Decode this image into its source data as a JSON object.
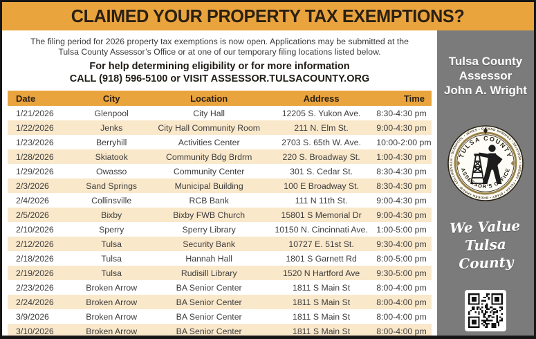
{
  "banner": {
    "title": "CLAIMED YOUR PROPERTY TAX EXEMPTIONS?"
  },
  "intro": {
    "line1": "The filing period for 2026 property tax exemptions is now open. Applications may be submitted at the",
    "line2": "Tulsa County Assessor’s Office or at one of our temporary filing locations listed below.",
    "help_line": "For help determining eligibility or for more information",
    "contact_line": "CALL (918) 596-5100 or VISIT ASSESSOR.TULSACOUNTY.ORG"
  },
  "table": {
    "headers": [
      "Date",
      "City",
      "Location",
      "Address",
      "Time"
    ],
    "rows": [
      [
        "1/21/2026",
        "Glenpool",
        "City Hall",
        "12205 S. Yukon Ave.",
        "8:30-4:30 pm"
      ],
      [
        "1/22/2026",
        "Jenks",
        "City Hall Community Room",
        "211 N. Elm St.",
        "9:00-4:30 pm"
      ],
      [
        "1/23/2026",
        "Berryhill",
        "Activities Center",
        "2703 S. 65th W. Ave.",
        "10:00-2:00 pm"
      ],
      [
        "1/28/2026",
        "Skiatook",
        "Community Bdg Brdrm",
        "220 S. Broadway St.",
        "1:00-4:30 pm"
      ],
      [
        "1/29/2026",
        "Owasso",
        "Community Center",
        "301 S. Cedar St.",
        "8:30-4:30 pm"
      ],
      [
        "2/3/2026",
        "Sand Springs",
        "Municipal Building",
        "100 E Broadway St.",
        "8:30-4:30 pm"
      ],
      [
        "2/4/2026",
        "Collinsville",
        "RCB Bank",
        "111 N 11th St.",
        "9:00-4:30 pm"
      ],
      [
        "2/5/2026",
        "Bixby",
        "Bixby FWB Church",
        "15801 S Memorial Dr",
        "9:00-4:30 pm"
      ],
      [
        "2/10/2026",
        "Sperry",
        "Sperry Library",
        "10150 N. Cincinnati Ave.",
        "1:00-5:00 pm"
      ],
      [
        "2/12/2026",
        "Tulsa",
        "Security Bank",
        "10727 E. 51st St.",
        "9:30-4:00 pm"
      ],
      [
        "2/18/2026",
        "Tulsa",
        "Hannah Hall",
        "1801 S Garnett Rd",
        "8:00-5:00 pm"
      ],
      [
        "2/19/2026",
        "Tulsa",
        "Rudisill Library",
        "1520 N Hartford Ave",
        "9:30-5:00 pm"
      ],
      [
        "2/23/2026",
        "Broken Arrow",
        "BA Senior Center",
        "1811 S Main St",
        "8:00-4:00 pm"
      ],
      [
        "2/24/2026",
        "Broken Arrow",
        "BA Senior Center",
        "1811 S Main St",
        "8:00-4:00 pm"
      ],
      [
        "3/9/2026",
        "Broken Arrow",
        "BA Senior Center",
        "1811 S Main St",
        "8:00-4:00 pm"
      ],
      [
        "3/10/2026",
        "Broken Arrow",
        "BA Senior Center",
        "1811 S Main St",
        "8:00-4:00 pm"
      ]
    ]
  },
  "sidebar": {
    "name_line1": "Tulsa County",
    "name_line2": "Assessor",
    "name_line3": "John  A. Wright",
    "seal": {
      "top_text": "TULSA COUNTY",
      "bottom_text": "ASSESSOR'S OFFICE",
      "ring_text": "SAND SPRINGS • SKIATOOK • SPERRY • TULSA • BIXBY • BROKEN ARROW • COLLINSVILLE • GLENPOOL • JENKS • OWASSO • LIBERTY •"
    },
    "tagline_line1": "We Value",
    "tagline_line2": "Tulsa County"
  },
  "colors": {
    "accent_orange": "#E9A43E",
    "row_stripe_cream": "#FAE8CB",
    "sidebar_gray": "#7B7B7B",
    "title_text": "#2b2013",
    "seal_gold": "#9A8249"
  }
}
